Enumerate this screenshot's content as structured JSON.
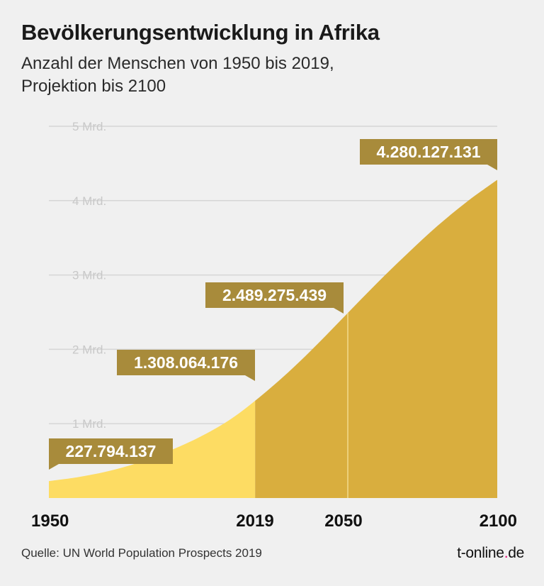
{
  "header": {
    "title": "Bevölkerungsentwicklung in Afrika",
    "subtitle_line1": "Anzahl der Menschen von 1950 bis 2019,",
    "subtitle_line2": "Projektion bis 2100"
  },
  "footer": {
    "source": "Quelle: UN World Population Prospects 2019",
    "brand_main": "t-online",
    "brand_dot": ".",
    "brand_tld": "de"
  },
  "colors": {
    "historical": "#fddc63",
    "projection": "#d9ae3e",
    "label_box": "#a88b3b",
    "label_text": "#ffffff",
    "grid": "#d6d6d6",
    "tick_text": "#c8c8c8",
    "year_text": "#111111"
  },
  "chart_data": {
    "type": "area",
    "ylim": [
      0,
      5000000000
    ],
    "xlim": [
      1950,
      2100
    ],
    "y_ticks": [
      {
        "value": 1000000000,
        "label": "1 Mrd."
      },
      {
        "value": 2000000000,
        "label": "2 Mrd."
      },
      {
        "value": 3000000000,
        "label": "3 Mrd."
      },
      {
        "value": 4000000000,
        "label": "4 Mrd."
      },
      {
        "value": 5000000000,
        "label": "5 Mrd."
      }
    ],
    "x_ticks": [
      {
        "value": 1950,
        "label": "1950"
      },
      {
        "value": 2019,
        "label": "2019"
      },
      {
        "value": 2050,
        "label": "2050"
      },
      {
        "value": 2100,
        "label": "2100"
      }
    ],
    "split_year": 2019,
    "x": [
      1950,
      1960,
      1970,
      1980,
      1990,
      2000,
      2010,
      2019,
      2030,
      2040,
      2050,
      2060,
      2070,
      2080,
      2090,
      2100
    ],
    "y": [
      227794137,
      283000000,
      363000000,
      476000000,
      630000000,
      811000000,
      1039000000,
      1308064176,
      1688000000,
      2077000000,
      2489275439,
      2900000000,
      3290000000,
      3660000000,
      3990000000,
      4280127131
    ],
    "annotations": [
      {
        "x": 1950,
        "value": 227794137,
        "label": "227.794.137"
      },
      {
        "x": 2019,
        "value": 1308064176,
        "label": "1.308.064.176"
      },
      {
        "x": 2050,
        "value": 2489275439,
        "label": "2.489.275.439"
      },
      {
        "x": 2100,
        "value": 4280127131,
        "label": "4.280.127.131"
      }
    ],
    "grid": true
  }
}
